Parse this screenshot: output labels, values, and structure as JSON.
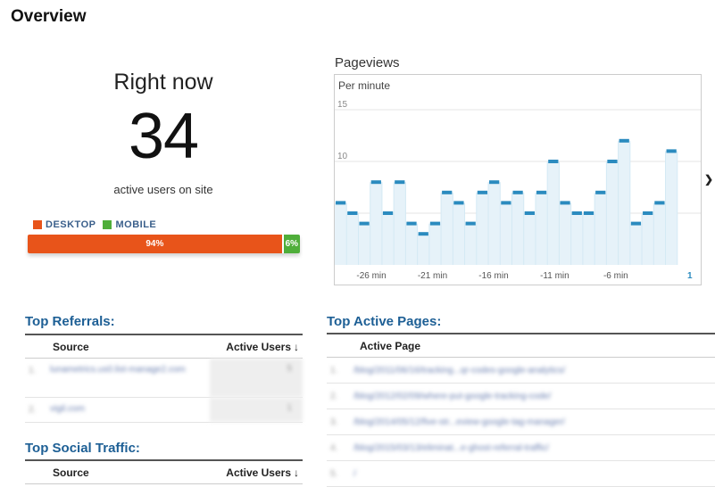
{
  "page_title": "Overview",
  "right_now": {
    "label": "Right now",
    "count": "34",
    "subtitle": "active users on site"
  },
  "device_split": {
    "legend": [
      {
        "label": "DESKTOP",
        "color": "#e8541a"
      },
      {
        "label": "MOBILE",
        "color": "#4fae3a"
      }
    ],
    "desktop_percent": 94,
    "mobile_percent": 6,
    "desktop_label": "94%",
    "mobile_label": "6%"
  },
  "pageviews": {
    "title": "Pageviews",
    "subtitle": "Per minute",
    "nav_icon": "chevron-right-icon"
  },
  "chart_data": {
    "type": "bar",
    "title": "Pageviews",
    "subtitle": "Per minute",
    "x_tick_labels": [
      "-26 min",
      "-21 min",
      "-16 min",
      "-11 min",
      "-6 min"
    ],
    "x_tick_minutes": [
      -26,
      -21,
      -16,
      -11,
      -6
    ],
    "y_ticks": [
      5,
      10,
      15
    ],
    "ylim": [
      0,
      20
    ],
    "x_range_minutes": [
      -29,
      0
    ],
    "values": [
      6,
      5,
      4,
      8,
      5,
      8,
      4,
      3,
      4,
      7,
      6,
      4,
      7,
      8,
      6,
      7,
      5,
      7,
      10,
      6,
      5,
      5,
      7,
      10,
      12,
      4,
      5,
      6,
      11,
      0
    ],
    "end_marker": "1",
    "colors": {
      "bar": "#e6f2f9",
      "cap": "#2b8bbf",
      "grid": "#e6e6e6"
    }
  },
  "top_referrals": {
    "title": "Top Referrals:",
    "col_source": "Source",
    "col_active_users": "Active Users",
    "sort_icon": "arrow-down-icon",
    "rows": [
      {
        "num": "1.",
        "source": "lunametrics.us0.list-manage2.com",
        "users": "5"
      },
      {
        "num": "2.",
        "source": "vigil.com",
        "users": "1"
      }
    ]
  },
  "top_social": {
    "title": "Top Social Traffic:",
    "col_source": "Source",
    "col_active_users": "Active Users",
    "sort_icon": "arrow-down-icon"
  },
  "top_pages": {
    "title": "Top Active Pages:",
    "col_page": "Active Page",
    "rows": [
      {
        "num": "1.",
        "page": "/blog/2011/06/16/tracking...qr-codes-google-analytics/"
      },
      {
        "num": "2.",
        "page": "/blog/2012/02/09/where-put-google-tracking-code/"
      },
      {
        "num": "3.",
        "page": "/blog/2014/05/12/five-str...eview-google-tag-manager/"
      },
      {
        "num": "4.",
        "page": "/blog/2015/03/13/eliminat...e-ghost-referral-traffic/"
      },
      {
        "num": "5.",
        "page": "/"
      }
    ]
  }
}
